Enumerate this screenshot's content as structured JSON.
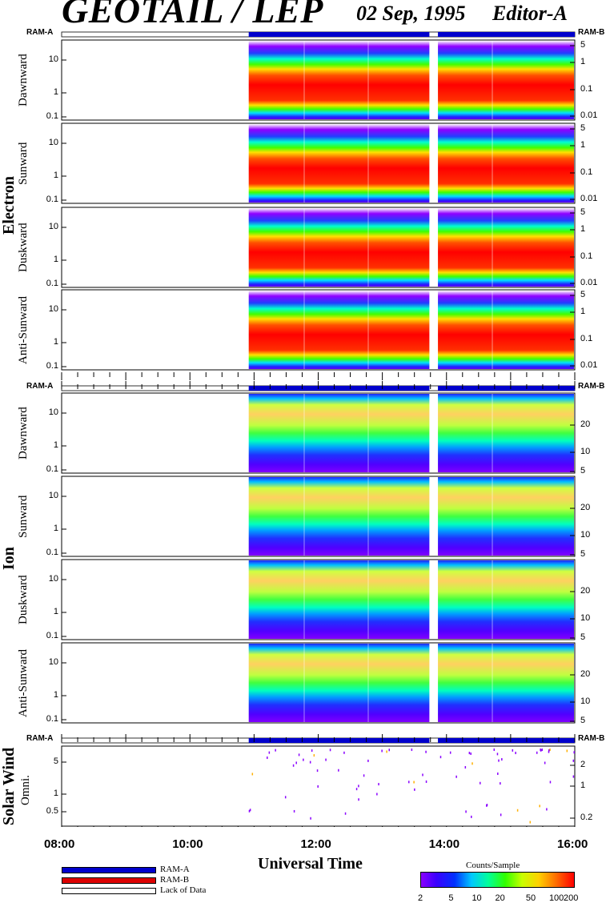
{
  "header": {
    "title": "GEOTAIL / LEP",
    "date": "02 Sep, 1995",
    "editor": "Editor-A"
  },
  "status": {
    "ram_a": "RAM-A",
    "ram_b": "RAM-B"
  },
  "x_axis": {
    "label": "Universal Time",
    "ticks": [
      "08:00",
      "10:00",
      "12:00",
      "14:00",
      "16:00"
    ]
  },
  "groups": {
    "electron": "Electron",
    "ion": "Ion",
    "solar_wind": "Solar Wind"
  },
  "panels": [
    {
      "label": "Dawnward",
      "left_ticks": [
        "10",
        "1",
        "0.1"
      ],
      "right_ticks": [
        "5",
        "1",
        "0.1",
        "0.01"
      ]
    },
    {
      "label": "Sunward",
      "left_ticks": [
        "10",
        "1",
        "0.1"
      ],
      "right_ticks": [
        "5",
        "1",
        "0.1",
        "0.01"
      ]
    },
    {
      "label": "Duskward",
      "left_ticks": [
        "10",
        "1",
        "0.1"
      ],
      "right_ticks": [
        "5",
        "1",
        "0.1",
        "0.01"
      ]
    },
    {
      "label": "Anti-Sunward",
      "left_ticks": [
        "10",
        "1",
        "0.1"
      ],
      "right_ticks": [
        "5",
        "1",
        "0.1",
        "0.01"
      ]
    },
    {
      "label": "Dawnward",
      "left_ticks": [
        "10",
        "1",
        "0.1"
      ],
      "right_ticks": [
        "20",
        "10",
        "5"
      ]
    },
    {
      "label": "Sunward",
      "left_ticks": [
        "10",
        "1",
        "0.1"
      ],
      "right_ticks": [
        "20",
        "10",
        "5"
      ]
    },
    {
      "label": "Duskward",
      "left_ticks": [
        "10",
        "1",
        "0.1"
      ],
      "right_ticks": [
        "20",
        "10",
        "5"
      ]
    },
    {
      "label": "Anti-Sunward",
      "left_ticks": [
        "10",
        "1",
        "0.1"
      ],
      "right_ticks": [
        "20",
        "10",
        "5"
      ]
    },
    {
      "label": "Omni.",
      "left_ticks": [
        "5",
        "1",
        "0.5"
      ],
      "right_ticks": [
        "2",
        "1",
        "0.2"
      ]
    }
  ],
  "legend": {
    "ram_a": "RAM-A",
    "ram_b": "RAM-B",
    "no_data": "Lack of Data"
  },
  "colorbar": {
    "title": "Counts/Sample",
    "ticks": [
      "2",
      "5",
      "10",
      "20",
      "50",
      "100",
      "200"
    ]
  },
  "chart_data": {
    "type": "heatmap",
    "x_range": [
      "08:00",
      "16:00"
    ],
    "data_start": "10:55",
    "data_gap": [
      "13:44",
      "13:52"
    ],
    "electron_left_ylim": [
      0.08,
      40
    ],
    "electron_right_ylim": [
      0.01,
      6
    ],
    "ion_left_ylim": [
      0.08,
      40
    ],
    "ion_right_ylim": [
      5,
      40
    ],
    "solar_wind_left_ylim": [
      0.25,
      10
    ],
    "solar_wind_right_ylim": [
      0.15,
      3
    ],
    "colorbar_range": [
      2,
      200
    ],
    "colors": {
      "ram_a": "#0000cc",
      "ram_b": "#dd0000"
    }
  }
}
